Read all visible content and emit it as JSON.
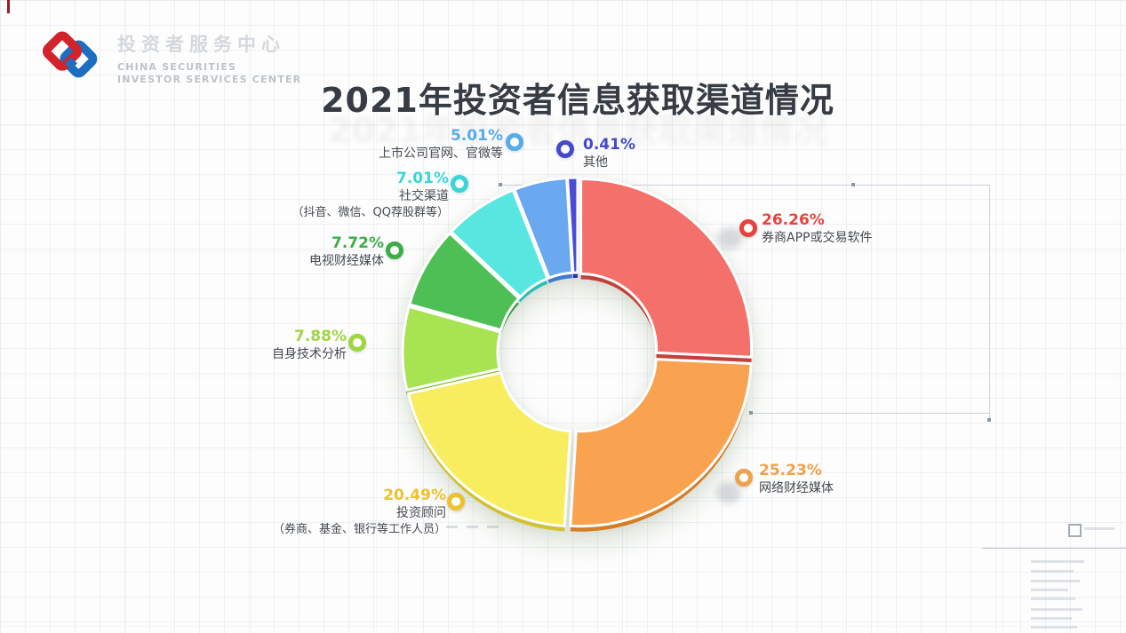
{
  "brand": {
    "name_cn": "投资者服务中心",
    "name_en_line1": "CHINA SECURITIES",
    "name_en_line2": "INVESTOR SERVICES CENTER",
    "logo_colors": {
      "red": "#d2232a",
      "blue": "#1d6dc1"
    }
  },
  "page_title": "2021年投资者信息获取渠道情况",
  "chart_data": {
    "type": "pie",
    "variant": "donut-3d-exploded",
    "title": "2021年投资者信息获取渠道情况",
    "unit": "%",
    "total": 100,
    "start_angle_deg": 0,
    "direction": "clockwise",
    "legend_position": "around-slices",
    "slices": [
      {
        "label": "券商APP或交易软件",
        "value": 26.26,
        "pct_text": "26.26%",
        "color": "#f4716b",
        "dark": "#c2423b",
        "accent": "#e8423d"
      },
      {
        "label": "网络财经媒体",
        "value": 25.23,
        "pct_text": "25.23%",
        "color": "#f9a350",
        "dark": "#d57c27",
        "accent": "#f0a14c"
      },
      {
        "label": "投资顾问",
        "sublabel": "（券商、基金、银行等工作人员）",
        "value": 20.49,
        "pct_text": "20.49%",
        "color": "#f7ed5e",
        "dark": "#d3c133",
        "accent": "#eec12f"
      },
      {
        "label": "自身技术分析",
        "value": 7.88,
        "pct_text": "7.88%",
        "color": "#a8e351",
        "dark": "#7fbd2e",
        "accent": "#9ed63f"
      },
      {
        "label": "电视财经媒体",
        "value": 7.72,
        "pct_text": "7.72%",
        "color": "#4ebf55",
        "dark": "#2f9a38",
        "accent": "#3bae47"
      },
      {
        "label": "社交渠道",
        "sublabel": "（抖音、微信、QQ荐股群等）",
        "value": 7.01,
        "pct_text": "7.01%",
        "color": "#57e6e0",
        "dark": "#2bbdb8",
        "accent": "#38d6d6"
      },
      {
        "label": "上市公司官网、官微等",
        "value": 5.01,
        "pct_text": "5.01%",
        "color": "#6aa8ef",
        "dark": "#4379cf",
        "accent": "#55ace9"
      },
      {
        "label": "其他",
        "value": 0.41,
        "pct_text": "0.41%",
        "color": "#4a4dd3",
        "dark": "#2e31a8",
        "accent": "#4649c8"
      }
    ]
  }
}
